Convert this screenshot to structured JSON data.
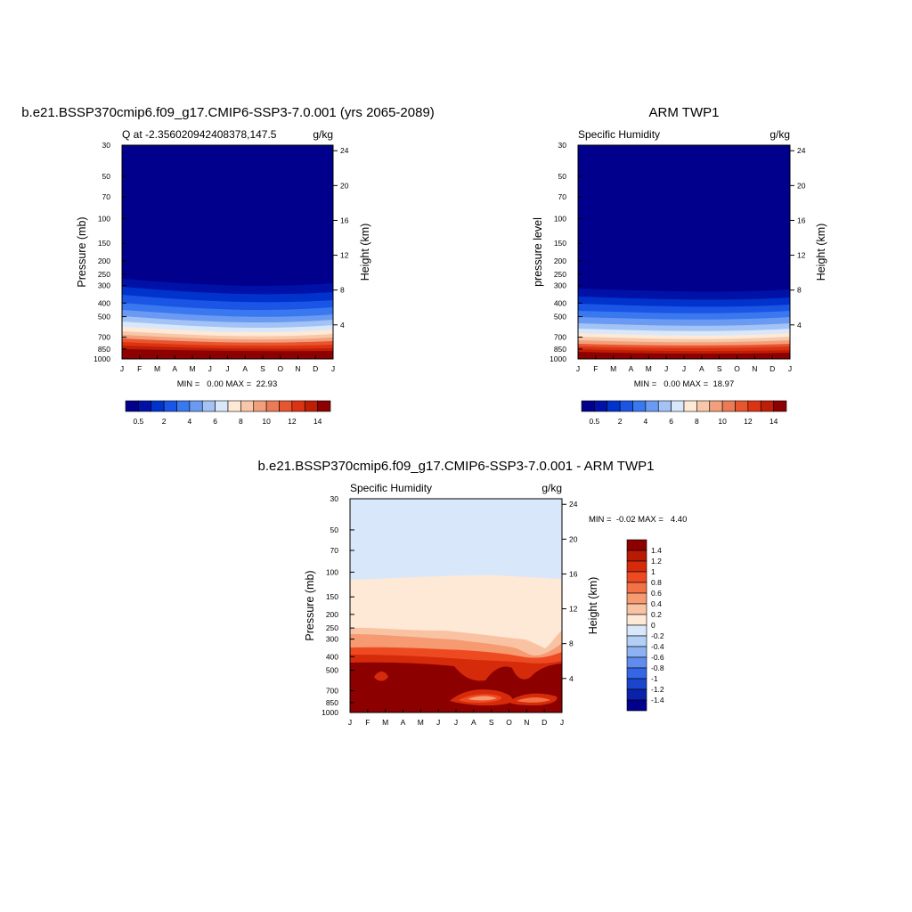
{
  "chart_data": [
    {
      "type": "heatmap",
      "panel": "model",
      "title": "b.e21.BSSP370cmip6.f09_g17.CMIP6-SSP3-7.0.001 (yrs 2065-2089)",
      "subtitle_left": "Q at -2.356020942408378,147.5",
      "subtitle_right": "g/kg",
      "ylabel": "Pressure (mb)",
      "ylabel_right": "Height (km)",
      "x_ticks": [
        "J",
        "F",
        "M",
        "A",
        "M",
        "J",
        "J",
        "A",
        "S",
        "O",
        "N",
        "D",
        "J"
      ],
      "y_ticks": [
        "30",
        "50",
        "70",
        "100",
        "150",
        "200",
        "250",
        "300",
        "400",
        "500",
        "700",
        "850",
        "1000"
      ],
      "y_ticks_right": [
        "24",
        "20",
        "16",
        "12",
        "8",
        "4"
      ],
      "minmax": "MIN =   0.00 MAX =  22.93",
      "colorbar_labels": [
        "0.5",
        "2",
        "4",
        "6",
        "8",
        "10",
        "12",
        "14"
      ],
      "colors": [
        "#00008c",
        "#0011a8",
        "#0033cc",
        "#1a55e6",
        "#3a78f0",
        "#6b9af2",
        "#a3c2f5",
        "#d8e8fa",
        "#fde9d6",
        "#f7c7a8",
        "#f2a07c",
        "#ed7a57",
        "#e8552f",
        "#dc3412",
        "#bf1e06",
        "#8c0000"
      ]
    },
    {
      "type": "heatmap",
      "panel": "obs",
      "title": "ARM TWP1",
      "subtitle_left": "Specific Humidity",
      "subtitle_right": "g/kg",
      "ylabel": "pressure level",
      "ylabel_right": "Height (km)",
      "x_ticks": [
        "J",
        "F",
        "M",
        "A",
        "M",
        "J",
        "J",
        "A",
        "S",
        "O",
        "N",
        "D",
        "J"
      ],
      "y_ticks": [
        "30",
        "50",
        "70",
        "100",
        "150",
        "200",
        "250",
        "300",
        "400",
        "500",
        "700",
        "850",
        "1000"
      ],
      "y_ticks_right": [
        "24",
        "20",
        "16",
        "12",
        "8",
        "4"
      ],
      "minmax": "MIN =   0.00 MAX =  18.97",
      "colorbar_labels": [
        "0.5",
        "2",
        "4",
        "6",
        "8",
        "10",
        "12",
        "14"
      ]
    },
    {
      "type": "heatmap",
      "panel": "diff",
      "title": "b.e21.BSSP370cmip6.f09_g17.CMIP6-SSP3-7.0.001 - ARM TWP1",
      "subtitle_left": "Specific Humidity",
      "subtitle_right": "g/kg",
      "ylabel": "Pressure (mb)",
      "ylabel_right": "Height (km)",
      "x_ticks": [
        "J",
        "F",
        "M",
        "A",
        "M",
        "J",
        "J",
        "A",
        "S",
        "O",
        "N",
        "D",
        "J"
      ],
      "y_ticks": [
        "30",
        "50",
        "70",
        "100",
        "150",
        "200",
        "250",
        "300",
        "400",
        "500",
        "700",
        "850",
        "1000"
      ],
      "y_ticks_right": [
        "24",
        "20",
        "16",
        "12",
        "8",
        "4"
      ],
      "minmax": "MIN =  -0.02 MAX =   4.40",
      "colorbar_labels": [
        "1.4",
        "1.2",
        "1",
        "0.8",
        "0.6",
        "0.4",
        "0.2",
        "0",
        "-0.2",
        "-0.4",
        "-0.6",
        "-0.8",
        "-1",
        "-1.2",
        "-1.4"
      ],
      "colors": [
        "#8c0000",
        "#b81a04",
        "#d62b0b",
        "#ee4a22",
        "#f37245",
        "#f69a72",
        "#f9c3a3",
        "#fde9d6",
        "#d8e8fa",
        "#b3cff5",
        "#8cb2f2",
        "#5f8cee",
        "#3466e6",
        "#1a45cc",
        "#0a22aa",
        "#00008c"
      ]
    }
  ]
}
